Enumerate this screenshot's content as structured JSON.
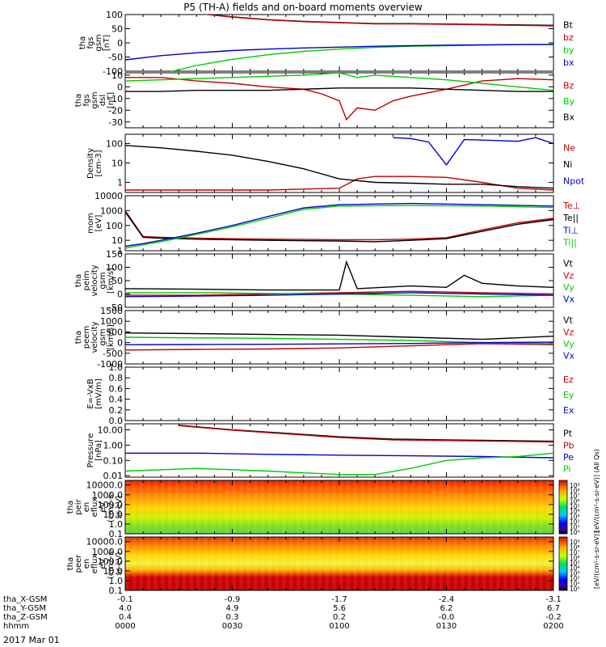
{
  "title": "P5 (TH-A) fields and on-board moments overview",
  "date_label": "2017 Mar 01",
  "chart_data": [
    {
      "type": "line",
      "ylabel_lines": [
        "tha",
        "fgs",
        "gsm",
        "[nT]"
      ],
      "ylim": [
        -100,
        100
      ],
      "yticks": [
        "100",
        "50",
        "0",
        "-50",
        "-100"
      ],
      "ytick_values": [
        100,
        50,
        0,
        -50,
        -100
      ],
      "series": [
        {
          "name": "Bt",
          "color": "#000000",
          "x": [
            15,
            20,
            30,
            40,
            50,
            60,
            70,
            80,
            95,
            120
          ],
          "y": [
            120,
            105,
            92,
            82,
            76,
            72,
            68,
            68,
            66,
            62
          ]
        },
        {
          "name": "bz",
          "color": "#c00000",
          "x": [
            15,
            20,
            30,
            40,
            50,
            60,
            70,
            80,
            95,
            120
          ],
          "y": [
            118,
            104,
            91,
            81,
            75,
            71,
            67,
            67,
            65,
            60
          ]
        },
        {
          "name": "by",
          "color": "#00cc00",
          "x": [
            0,
            10,
            20,
            30,
            40,
            50,
            60,
            70,
            80,
            90,
            100,
            110,
            120
          ],
          "y": [
            -150,
            -110,
            -80,
            -58,
            -42,
            -30,
            -22,
            -16,
            -12,
            -10,
            -8,
            -6,
            -5
          ]
        },
        {
          "name": "bx",
          "color": "#0000cc",
          "x": [
            0,
            10,
            20,
            30,
            40,
            50,
            60,
            70,
            80,
            90,
            100,
            110,
            120
          ],
          "y": [
            -60,
            -45,
            -35,
            -27,
            -22,
            -18,
            -15,
            -12,
            -10,
            -8,
            -7,
            -6,
            -6
          ]
        }
      ]
    },
    {
      "type": "line",
      "ylabel_lines": [
        "tha",
        "fgs",
        "gsm",
        "dsl",
        "[nT]"
      ],
      "ylim": [
        -35,
        12
      ],
      "yticks": [
        "10",
        "0",
        "-10",
        "-20",
        "-30"
      ],
      "ytick_values": [
        10,
        0,
        -10,
        -20,
        -30
      ],
      "series": [
        {
          "name": "Bz",
          "color": "#c00000",
          "x": [
            0,
            10,
            20,
            30,
            40,
            50,
            55,
            60,
            62,
            65,
            70,
            75,
            80,
            90,
            100,
            110,
            120
          ],
          "y": [
            8,
            8,
            5,
            3,
            0,
            -2,
            -6,
            -12,
            -28,
            -18,
            -20,
            -12,
            -8,
            -2,
            5,
            7,
            6
          ]
        },
        {
          "name": "By",
          "color": "#00cc00",
          "x": [
            0,
            10,
            20,
            30,
            40,
            50,
            60,
            65,
            70,
            80,
            90,
            100,
            110,
            120
          ],
          "y": [
            5,
            6,
            7,
            8,
            9,
            10,
            12,
            8,
            10,
            8,
            6,
            3,
            0,
            -3
          ]
        },
        {
          "name": "Bx",
          "color": "#000000",
          "x": [
            0,
            10,
            20,
            30,
            40,
            50,
            60,
            70,
            80,
            90,
            100,
            110,
            120
          ],
          "y": [
            -4,
            -4,
            -3,
            -3,
            -3,
            -2,
            -1,
            -1,
            -1,
            -2,
            -3,
            -4,
            -4
          ]
        }
      ]
    },
    {
      "type": "line",
      "ylabel_lines": [
        "Density",
        "[cm-3]"
      ],
      "yscale": "log",
      "ylim": [
        0.3,
        300
      ],
      "yticks": [
        "100",
        "10",
        "1"
      ],
      "ytick_values": [
        100,
        10,
        1
      ],
      "series": [
        {
          "name": "Ne",
          "color": "#c00000",
          "x": [
            0,
            20,
            40,
            60,
            65,
            70,
            80,
            90,
            100,
            110,
            120
          ],
          "y": [
            0.4,
            0.4,
            0.4,
            0.5,
            1.5,
            2.0,
            2.0,
            1.8,
            1.0,
            0.5,
            0.4
          ]
        },
        {
          "name": "Ni",
          "color": "#000000",
          "x": [
            0,
            10,
            20,
            30,
            40,
            50,
            60,
            70,
            80,
            90,
            100,
            110,
            120
          ],
          "y": [
            80,
            60,
            40,
            25,
            12,
            5,
            1.5,
            1.0,
            0.9,
            0.8,
            0.8,
            0.6,
            0.5
          ]
        },
        {
          "name": "Npot",
          "color": "#0000cc",
          "x": [
            75,
            80,
            85,
            90,
            95,
            100,
            105,
            110,
            115,
            120
          ],
          "y": [
            200,
            180,
            120,
            8,
            160,
            150,
            140,
            130,
            200,
            100
          ]
        }
      ]
    },
    {
      "type": "line",
      "ylabel_lines": [
        "mom",
        "[eV]"
      ],
      "yscale": "log",
      "ylim": [
        2,
        10000
      ],
      "yticks": [
        "10000",
        "1000",
        "100",
        "10",
        "1"
      ],
      "ytick_values": [
        10000,
        1000,
        100,
        10,
        1
      ],
      "series": [
        {
          "name": "Te⊥",
          "color": "#c00000",
          "x": [
            0,
            5,
            10,
            20,
            40,
            60,
            70,
            80,
            90,
            100,
            110,
            120
          ],
          "y": [
            1000,
            18,
            16,
            14,
            12,
            11,
            11,
            12,
            15,
            50,
            150,
            300
          ]
        },
        {
          "name": "Te||",
          "color": "#000000",
          "x": [
            0,
            5,
            10,
            20,
            40,
            60,
            70,
            80,
            90,
            100,
            110,
            120
          ],
          "y": [
            800,
            16,
            14,
            12,
            10,
            9,
            8,
            10,
            13,
            40,
            120,
            250
          ]
        },
        {
          "name": "Ti⊥",
          "color": "#0000cc",
          "x": [
            0,
            5,
            10,
            20,
            30,
            40,
            50,
            60,
            80,
            100,
            120
          ],
          "y": [
            4,
            6,
            10,
            30,
            100,
            400,
            1500,
            2500,
            3000,
            2500,
            2000
          ]
        },
        {
          "name": "Ti||",
          "color": "#00cc00",
          "x": [
            0,
            5,
            10,
            20,
            30,
            40,
            50,
            60,
            80,
            100,
            120
          ],
          "y": [
            3,
            5,
            8,
            25,
            80,
            300,
            1200,
            2000,
            2200,
            2000,
            1600
          ]
        }
      ]
    },
    {
      "type": "line",
      "ylabel_lines": [
        "tha",
        "peim",
        "velocity",
        "gsm",
        "[km/s]"
      ],
      "ylim": [
        -50,
        150
      ],
      "yticks": [
        "150",
        "100",
        "50",
        "0",
        "-50"
      ],
      "ytick_values": [
        150,
        100,
        50,
        0,
        -50
      ],
      "series": [
        {
          "name": "Vt",
          "color": "#000000",
          "x": [
            0,
            20,
            40,
            60,
            62,
            65,
            80,
            90,
            95,
            100,
            110,
            120
          ],
          "y": [
            20,
            18,
            15,
            15,
            120,
            20,
            30,
            25,
            70,
            40,
            30,
            25
          ]
        },
        {
          "name": "Vz",
          "color": "#c00000",
          "x": [
            0,
            20,
            40,
            60,
            80,
            100,
            120
          ],
          "y": [
            -5,
            -5,
            0,
            5,
            10,
            5,
            0
          ]
        },
        {
          "name": "Vy",
          "color": "#00cc00",
          "x": [
            0,
            20,
            40,
            60,
            80,
            100,
            120
          ],
          "y": [
            5,
            5,
            2,
            0,
            -5,
            -10,
            -5
          ]
        },
        {
          "name": "Vx",
          "color": "#0000cc",
          "x": [
            0,
            20,
            40,
            60,
            80,
            100,
            120
          ],
          "y": [
            -10,
            -8,
            -5,
            0,
            5,
            0,
            -5
          ]
        }
      ]
    },
    {
      "type": "line",
      "ylabel_lines": [
        "tha",
        "peem",
        "velocity",
        "gsm",
        "[km/s]"
      ],
      "ylim": [
        -1000,
        1500
      ],
      "yticks": [
        "1500",
        "1000",
        "500",
        "0",
        "-500",
        "-1000"
      ],
      "ytick_values": [
        1500,
        1000,
        500,
        0,
        -500,
        -1000
      ],
      "series": [
        {
          "name": "Vt",
          "color": "#000000",
          "x": [
            0,
            20,
            40,
            60,
            80,
            100,
            120
          ],
          "y": [
            450,
            420,
            380,
            350,
            250,
            150,
            300
          ]
        },
        {
          "name": "Vz",
          "color": "#c00000",
          "x": [
            0,
            20,
            40,
            60,
            80,
            100,
            120
          ],
          "y": [
            -350,
            -320,
            -300,
            -250,
            -150,
            -50,
            -100
          ]
        },
        {
          "name": "Vy",
          "color": "#00cc00",
          "x": [
            0,
            20,
            40,
            60,
            80,
            100,
            120
          ],
          "y": [
            250,
            220,
            200,
            150,
            100,
            0,
            -50
          ]
        },
        {
          "name": "Vx",
          "color": "#0000cc",
          "x": [
            0,
            20,
            40,
            60,
            80,
            100,
            120
          ],
          "y": [
            -100,
            -90,
            -80,
            -60,
            -40,
            0,
            20
          ]
        }
      ]
    },
    {
      "type": "line",
      "ylabel_lines": [
        "E=-VxB",
        "[mV/m]"
      ],
      "ylim": [
        0,
        1
      ],
      "yticks": [
        "1.0",
        "0.8",
        "0.6",
        "0.4",
        "0.2",
        "0.0"
      ],
      "ytick_values": [
        1.0,
        0.8,
        0.6,
        0.4,
        0.2,
        0.0
      ],
      "series": [
        {
          "name": "Ez",
          "color": "#c00000",
          "x": [],
          "y": []
        },
        {
          "name": "Ey",
          "color": "#00cc00",
          "x": [],
          "y": []
        },
        {
          "name": "Ex",
          "color": "#0000cc",
          "x": [],
          "y": []
        }
      ]
    },
    {
      "type": "line",
      "ylabel_lines": [
        "Pressure",
        "[nPa]"
      ],
      "yscale": "log",
      "ylim": [
        0.008,
        25
      ],
      "yticks": [
        "10.00",
        "1.00",
        "0.10",
        "0.01"
      ],
      "ytick_values": [
        10,
        1,
        0.1,
        0.01
      ],
      "series": [
        {
          "name": "Pt",
          "color": "#000000",
          "x": [
            15,
            30,
            45,
            60,
            75,
            90,
            105,
            120
          ],
          "y": [
            20,
            10,
            6,
            3.5,
            2.5,
            2.2,
            2.0,
            1.8
          ]
        },
        {
          "name": "Pb",
          "color": "#c00000",
          "x": [
            15,
            30,
            45,
            60,
            75,
            90,
            105,
            120
          ],
          "y": [
            19,
            9.5,
            5.5,
            3.2,
            2.2,
            2.0,
            1.8,
            1.6
          ]
        },
        {
          "name": "Pe",
          "color": "#0000cc",
          "x": [
            0,
            20,
            40,
            60,
            80,
            100,
            120
          ],
          "y": [
            0.3,
            0.3,
            0.25,
            0.22,
            0.2,
            0.18,
            0.15
          ]
        },
        {
          "name": "Pi",
          "color": "#00cc00",
          "x": [
            0,
            20,
            40,
            60,
            70,
            80,
            90,
            100,
            110,
            120
          ],
          "y": [
            0.02,
            0.03,
            0.02,
            0.012,
            0.012,
            0.03,
            0.1,
            0.15,
            0.18,
            0.3
          ]
        }
      ]
    },
    {
      "type": "heatmap",
      "ylabel_lines": [
        "tha",
        "peir",
        "en",
        "eflux",
        "eV",
        "(cm2-s-",
        "sr-eV)"
      ],
      "yscale": "log",
      "ylim": [
        0.1,
        30000
      ],
      "yticks": [
        "10000.0",
        "1000.0",
        "100.0",
        "10.0",
        "1.0",
        "0.1"
      ],
      "ytick_values": [
        10000,
        1000,
        100,
        10,
        1,
        0.1
      ],
      "colorbar_label": "[eV/(cm²-s-sr-eV)] (All Qs)",
      "colorbar_ticks": [
        "10⁹",
        "10⁸",
        "10⁷",
        "10⁶",
        "10⁵",
        "10⁴",
        "10³",
        "10²",
        "10¹",
        "10⁰"
      ]
    },
    {
      "type": "heatmap",
      "ylabel_lines": [
        "tha",
        "peer",
        "en",
        "eflux",
        "eV",
        "(cm2-s-",
        "sr-eV)"
      ],
      "yscale": "log",
      "ylim": [
        0.1,
        30000
      ],
      "yticks": [
        "10000.0",
        "1000.0",
        "100.0",
        "10.0",
        "1.0",
        "0.1"
      ],
      "ytick_values": [
        10000,
        1000,
        100,
        10,
        1,
        0.1
      ],
      "colorbar_label": "[eV/(cm²-s-sr-eV)]",
      "colorbar_ticks": [
        "10⁹",
        "10⁸",
        "10⁷",
        "10⁶",
        "10⁵",
        "10⁴",
        "10³",
        "10²",
        "10¹",
        "10⁰"
      ]
    }
  ],
  "x_axis": {
    "row_labels": [
      "tha_X-GSM",
      "tha_Y-GSM",
      "tha_Z-GSM",
      "hhmm"
    ],
    "columns": [
      {
        "x": 0,
        "values": [
          "-0.1",
          "4.0",
          "0.4",
          "0000"
        ]
      },
      {
        "x": 30,
        "values": [
          "-0.9",
          "4.9",
          "0.3",
          "0030"
        ]
      },
      {
        "x": 60,
        "values": [
          "-1.7",
          "5.6",
          "0.2",
          "0100"
        ]
      },
      {
        "x": 90,
        "values": [
          "-2.4",
          "6.2",
          "-0.0",
          "0130"
        ]
      },
      {
        "x": 120,
        "values": [
          "-3.1",
          "6.7",
          "-0.2",
          "0200"
        ]
      }
    ]
  }
}
